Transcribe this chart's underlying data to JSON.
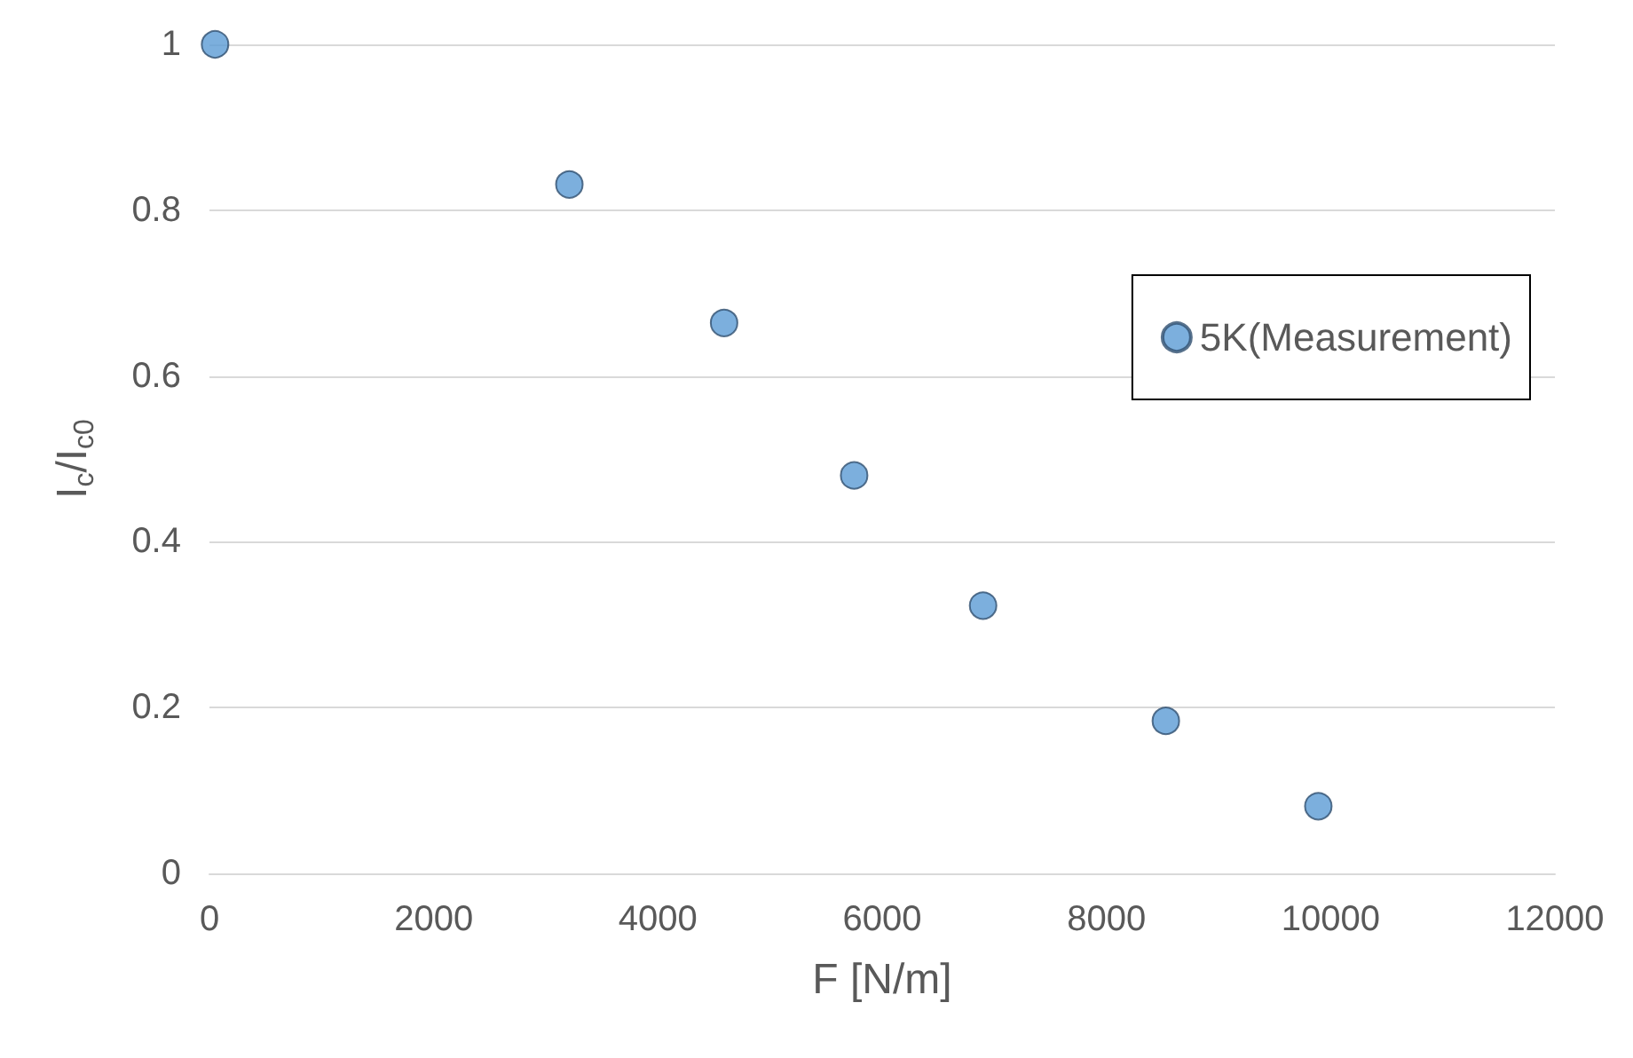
{
  "chart_data": {
    "type": "scatter",
    "xlabel": "F [N/m]",
    "ylabel": "I$_{c}$/I$_{c0}$",
    "xlim": [
      0,
      12000
    ],
    "xticks": [
      0,
      2000,
      4000,
      6000,
      8000,
      10000,
      12000
    ],
    "ylim": [
      0,
      1
    ],
    "yticks": [
      0,
      0.2,
      0.4,
      0.6,
      0.8,
      1
    ],
    "grid": "y",
    "legend": "right",
    "marker": "circle",
    "series": [
      {
        "name": "5K(Measurement)",
        "color": "#5b9bd5",
        "x": [
          50,
          3210,
          4590,
          5750,
          6900,
          8530,
          9890
        ],
        "values": [
          1.0,
          0.831,
          0.664,
          0.48,
          0.323,
          0.184,
          0.081
        ]
      }
    ]
  }
}
